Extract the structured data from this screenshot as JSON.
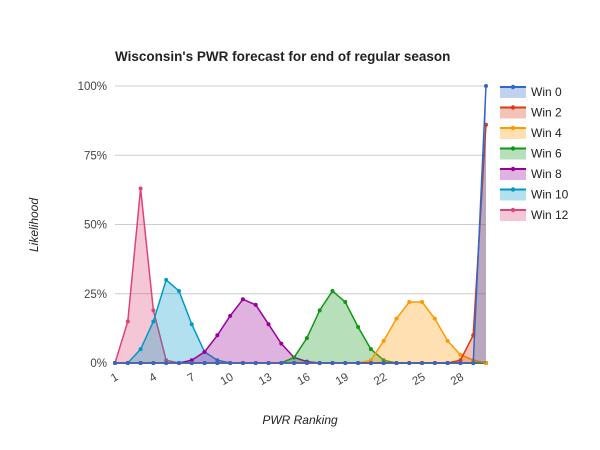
{
  "chart_data": {
    "type": "area",
    "title": "Wisconsin's PWR forecast for end of regular season",
    "xlabel": "PWR Ranking",
    "ylabel": "Likelihood",
    "x": [
      1,
      2,
      3,
      4,
      5,
      6,
      7,
      8,
      9,
      10,
      11,
      12,
      13,
      14,
      15,
      16,
      17,
      18,
      19,
      20,
      21,
      22,
      23,
      24,
      25,
      26,
      27,
      28,
      29,
      30
    ],
    "x_ticks": [
      "1",
      "4",
      "7",
      "10",
      "13",
      "16",
      "19",
      "22",
      "25",
      "28"
    ],
    "y_ticks": [
      "0%",
      "25%",
      "50%",
      "75%",
      "100%"
    ],
    "ylim": [
      0,
      1
    ],
    "grid": true,
    "legend_position": "right",
    "series": [
      {
        "name": "Win 0",
        "color": "#3366cc",
        "values": [
          0,
          0,
          0,
          0,
          0,
          0,
          0,
          0,
          0,
          0,
          0,
          0,
          0,
          0,
          0,
          0,
          0,
          0,
          0,
          0,
          0,
          0,
          0,
          0,
          0,
          0,
          0,
          0,
          0,
          1.0
        ]
      },
      {
        "name": "Win 2",
        "color": "#dc3912",
        "values": [
          0,
          0,
          0,
          0,
          0,
          0,
          0,
          0,
          0,
          0,
          0,
          0,
          0,
          0,
          0,
          0,
          0,
          0,
          0,
          0,
          0,
          0,
          0,
          0,
          0,
          0,
          0,
          0.01,
          0.1,
          0.86
        ]
      },
      {
        "name": "Win 4",
        "color": "#ff9900",
        "values": [
          0,
          0,
          0,
          0,
          0,
          0,
          0,
          0,
          0,
          0,
          0,
          0,
          0,
          0,
          0,
          0,
          0,
          0,
          0,
          0,
          0.01,
          0.08,
          0.16,
          0.22,
          0.22,
          0.16,
          0.08,
          0.03,
          0.01,
          0
        ]
      },
      {
        "name": "Win 6",
        "color": "#109618",
        "values": [
          0,
          0,
          0,
          0,
          0,
          0,
          0,
          0,
          0,
          0,
          0,
          0,
          0,
          0,
          0.02,
          0.09,
          0.19,
          0.26,
          0.22,
          0.13,
          0.05,
          0.01,
          0,
          0,
          0,
          0,
          0,
          0,
          0,
          0
        ]
      },
      {
        "name": "Win 8",
        "color": "#990099",
        "values": [
          0,
          0,
          0,
          0,
          0,
          0,
          0.01,
          0.04,
          0.1,
          0.17,
          0.23,
          0.21,
          0.14,
          0.07,
          0.02,
          0.005,
          0,
          0,
          0,
          0,
          0,
          0,
          0,
          0,
          0,
          0,
          0,
          0,
          0,
          0
        ]
      },
      {
        "name": "Win 10",
        "color": "#0099c6",
        "values": [
          0,
          0,
          0.05,
          0.15,
          0.3,
          0.26,
          0.14,
          0.04,
          0.01,
          0,
          0,
          0,
          0,
          0,
          0,
          0,
          0,
          0,
          0,
          0,
          0,
          0,
          0,
          0,
          0,
          0,
          0,
          0,
          0,
          0
        ]
      },
      {
        "name": "Win 12",
        "color": "#dd4477",
        "values": [
          0,
          0.15,
          0.63,
          0.19,
          0.01,
          0,
          0,
          0,
          0,
          0,
          0,
          0,
          0,
          0,
          0,
          0,
          0,
          0,
          0,
          0,
          0,
          0,
          0,
          0,
          0,
          0,
          0,
          0,
          0,
          0
        ]
      }
    ]
  }
}
